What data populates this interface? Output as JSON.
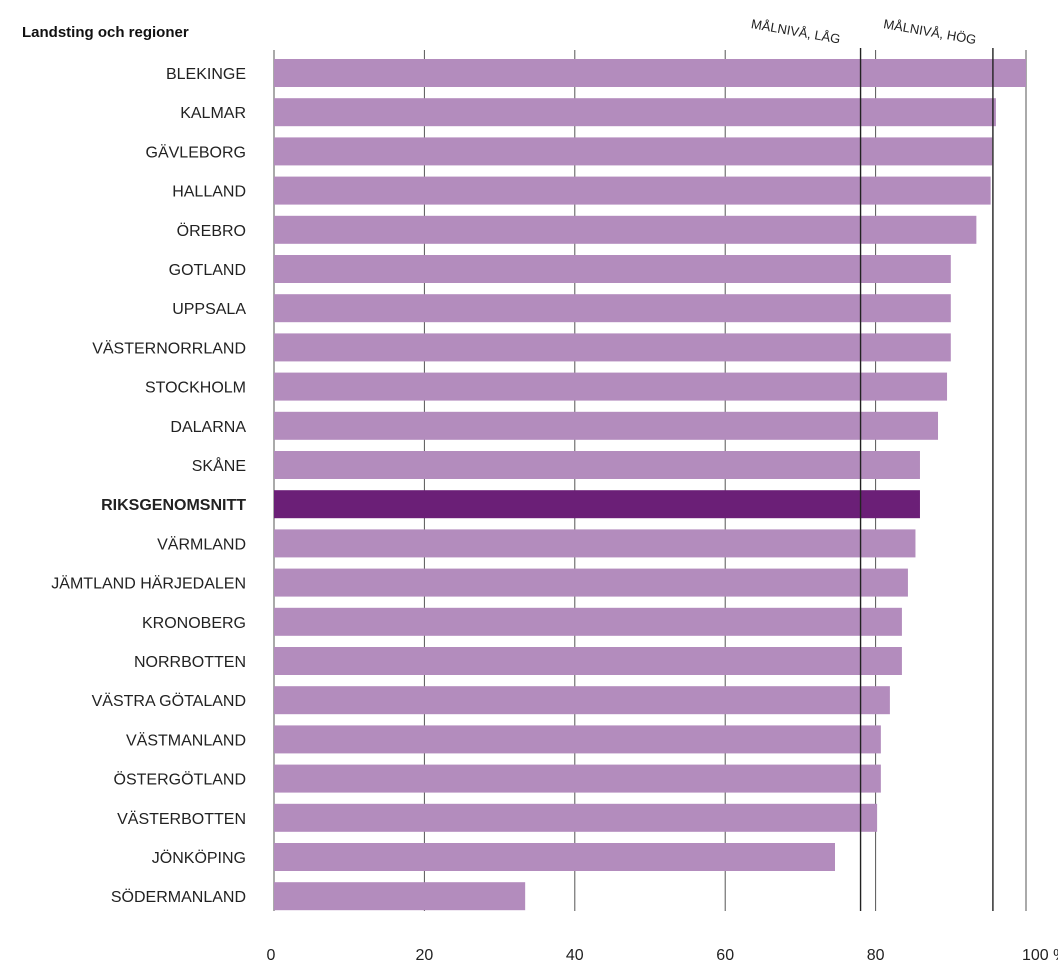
{
  "chart_data": {
    "type": "bar",
    "orientation": "horizontal",
    "header": "Landsting och regioner",
    "categories": [
      "BLEKINGE",
      "KALMAR",
      "GÄVLEBORG",
      "HALLAND",
      "ÖREBRO",
      "GOTLAND",
      "UPPSALA",
      "VÄSTERNORRLAND",
      "STOCKHOLM",
      "DALARNA",
      "SKÅNE",
      "RIKSGENOMSNITT",
      "VÄRMLAND",
      "JÄMTLAND HÄRJEDALEN",
      "KRONOBERG",
      "NORRBOTTEN",
      "VÄSTRA GÖTALAND",
      "VÄSTMANLAND",
      "ÖSTERGÖTLAND",
      "VÄSTERBOTTEN",
      "JÖNKÖPING",
      "SÖDERMANLAND"
    ],
    "values": [
      100,
      96,
      95.5,
      95.3,
      93.4,
      90,
      90,
      90,
      89.5,
      88.3,
      85.9,
      85.9,
      85.3,
      84.3,
      83.5,
      83.5,
      81.9,
      80.7,
      80.7,
      80.2,
      74.6,
      33.4
    ],
    "highlight": "RIKSGENOMSNITT",
    "xlim": [
      0,
      100
    ],
    "x_ticks": [
      "0",
      "20",
      "40",
      "60",
      "80",
      "100 %"
    ],
    "x_tick_values": [
      0,
      20,
      40,
      60,
      80,
      100
    ],
    "reference_lines": [
      {
        "label": "MÅLNIVÅ, LÅG",
        "value": 78
      },
      {
        "label": "MÅLNIVÅ, HÖG",
        "value": 95.6
      }
    ],
    "grid": true,
    "colors": {
      "bar": "#b38cbd",
      "highlight_bar": "#6b1f77",
      "grid": "#555555",
      "reference": "#222222"
    }
  }
}
